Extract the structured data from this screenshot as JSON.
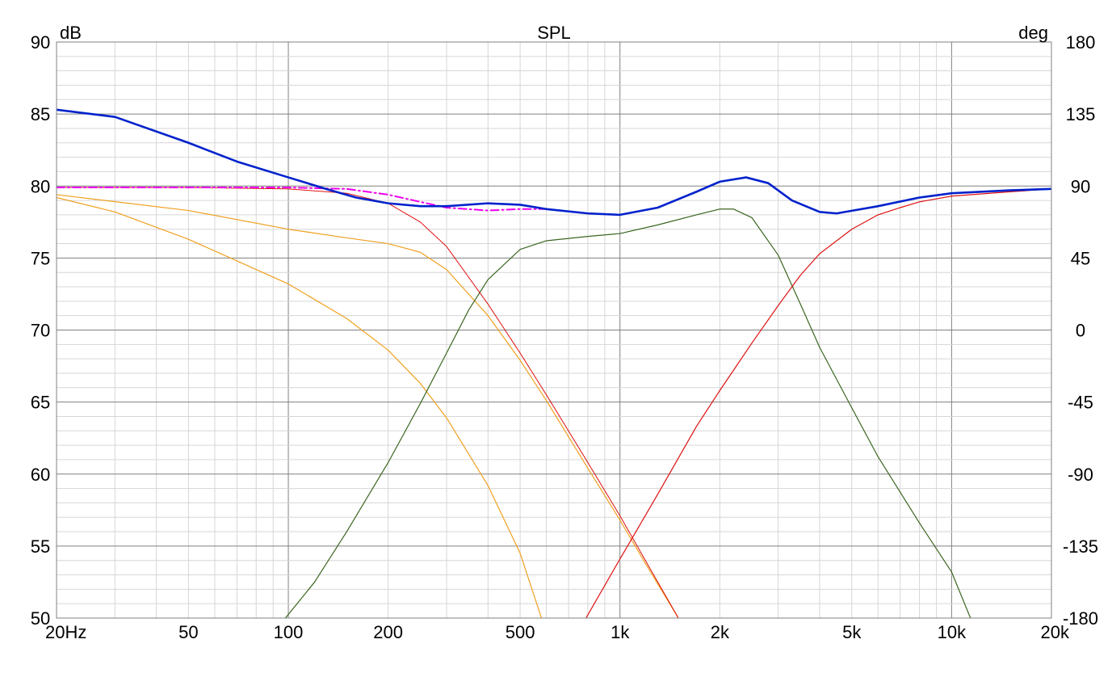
{
  "chart_data": {
    "type": "line",
    "title": "SPL",
    "ylabel_left": "dB",
    "ylabel_right": "deg",
    "x_scale": "log",
    "xlim": [
      20,
      20000
    ],
    "ylim": [
      50,
      90
    ],
    "ylim_right": [
      -180,
      180
    ],
    "grid": true,
    "x_ticks": [
      {
        "v": 20,
        "label": "20Hz"
      },
      {
        "v": 50,
        "label": "50"
      },
      {
        "v": 100,
        "label": "100"
      },
      {
        "v": 200,
        "label": "200"
      },
      {
        "v": 500,
        "label": "500"
      },
      {
        "v": 1000,
        "label": "1k"
      },
      {
        "v": 2000,
        "label": "2k"
      },
      {
        "v": 5000,
        "label": "5k"
      },
      {
        "v": 10000,
        "label": "10k"
      },
      {
        "v": 20000,
        "label": "20k"
      }
    ],
    "y_ticks": [
      {
        "v": 90,
        "label": "90"
      },
      {
        "v": 85,
        "label": "85"
      },
      {
        "v": 80,
        "label": "80"
      },
      {
        "v": 75,
        "label": "75"
      },
      {
        "v": 70,
        "label": "70"
      },
      {
        "v": 65,
        "label": "65"
      },
      {
        "v": 60,
        "label": "60"
      },
      {
        "v": 55,
        "label": "55"
      },
      {
        "v": 50,
        "label": "50"
      }
    ],
    "y_ticks_right": [
      {
        "v": 90,
        "label": "180"
      },
      {
        "v": 85,
        "label": "135"
      },
      {
        "v": 80,
        "label": "90"
      },
      {
        "v": 75,
        "label": "45"
      },
      {
        "v": 70,
        "label": "0"
      },
      {
        "v": 65,
        "label": "-45"
      },
      {
        "v": 60,
        "label": "-90"
      },
      {
        "v": 55,
        "label": "-135"
      },
      {
        "v": 50,
        "label": "-180"
      }
    ],
    "series": [
      {
        "color": "#0022cc",
        "width": 2.6,
        "dash": "",
        "points": [
          [
            20,
            85.3
          ],
          [
            30,
            84.8
          ],
          [
            50,
            83.0
          ],
          [
            70,
            81.7
          ],
          [
            100,
            80.6
          ],
          [
            130,
            79.8
          ],
          [
            160,
            79.2
          ],
          [
            200,
            78.8
          ],
          [
            250,
            78.6
          ],
          [
            300,
            78.6
          ],
          [
            400,
            78.8
          ],
          [
            500,
            78.7
          ],
          [
            600,
            78.4
          ],
          [
            800,
            78.1
          ],
          [
            1000,
            78.0
          ],
          [
            1300,
            78.5
          ],
          [
            1700,
            79.6
          ],
          [
            2000,
            80.3
          ],
          [
            2400,
            80.6
          ],
          [
            2800,
            80.2
          ],
          [
            3300,
            79.0
          ],
          [
            4000,
            78.2
          ],
          [
            4500,
            78.1
          ],
          [
            6000,
            78.6
          ],
          [
            8000,
            79.2
          ],
          [
            10000,
            79.5
          ],
          [
            15000,
            79.7
          ],
          [
            20000,
            79.8
          ]
        ]
      },
      {
        "color": "#ee00ee",
        "width": 2.0,
        "dash": "10,4,2,4",
        "points": [
          [
            20,
            79.9
          ],
          [
            50,
            79.9
          ],
          [
            100,
            79.9
          ],
          [
            150,
            79.8
          ],
          [
            200,
            79.4
          ],
          [
            250,
            78.9
          ],
          [
            300,
            78.5
          ],
          [
            400,
            78.3
          ],
          [
            500,
            78.4
          ],
          [
            600,
            78.4
          ],
          [
            800,
            78.1
          ],
          [
            1000,
            78.0
          ],
          [
            1300,
            78.5
          ],
          [
            1700,
            79.6
          ],
          [
            2000,
            80.3
          ],
          [
            2400,
            80.6
          ],
          [
            2800,
            80.2
          ],
          [
            3300,
            79.0
          ],
          [
            4000,
            78.2
          ],
          [
            4500,
            78.1
          ],
          [
            6000,
            78.6
          ],
          [
            8000,
            79.2
          ],
          [
            10000,
            79.5
          ],
          [
            15000,
            79.7
          ],
          [
            20000,
            79.8
          ]
        ]
      },
      {
        "color": "#dd0000",
        "width": 1.0,
        "dash": "2,1",
        "points": [
          [
            20,
            79.9
          ],
          [
            50,
            79.9
          ],
          [
            100,
            79.8
          ],
          [
            150,
            79.5
          ],
          [
            200,
            78.8
          ],
          [
            250,
            77.5
          ],
          [
            300,
            75.8
          ],
          [
            400,
            71.8
          ],
          [
            500,
            68.4
          ],
          [
            600,
            65.5
          ],
          [
            800,
            60.8
          ],
          [
            1000,
            57.1
          ],
          [
            1200,
            53.9
          ],
          [
            1500,
            50.0
          ]
        ]
      },
      {
        "color": "#f0a020",
        "width": 1.2,
        "dash": "",
        "points": [
          [
            20,
            79.4
          ],
          [
            50,
            78.3
          ],
          [
            100,
            77.0
          ],
          [
            150,
            76.4
          ],
          [
            200,
            76.0
          ],
          [
            250,
            75.4
          ],
          [
            300,
            74.2
          ],
          [
            400,
            71.0
          ],
          [
            500,
            67.9
          ],
          [
            600,
            65.1
          ],
          [
            800,
            60.4
          ],
          [
            1000,
            56.8
          ],
          [
            1200,
            53.7
          ],
          [
            1500,
            50.0
          ]
        ]
      },
      {
        "color": "#f0a020",
        "width": 1.2,
        "dash": "",
        "points": [
          [
            20,
            79.2
          ],
          [
            30,
            78.2
          ],
          [
            50,
            76.3
          ],
          [
            70,
            74.8
          ],
          [
            100,
            73.2
          ],
          [
            150,
            70.8
          ],
          [
            200,
            68.6
          ],
          [
            250,
            66.3
          ],
          [
            300,
            63.9
          ],
          [
            400,
            59.2
          ],
          [
            500,
            54.5
          ],
          [
            580,
            50.0
          ]
        ]
      },
      {
        "color": "#3a6620",
        "width": 1.2,
        "dash": "",
        "points": [
          [
            98,
            50.0
          ],
          [
            120,
            52.5
          ],
          [
            150,
            56.0
          ],
          [
            200,
            60.8
          ],
          [
            250,
            64.9
          ],
          [
            300,
            68.4
          ],
          [
            350,
            71.4
          ],
          [
            400,
            73.5
          ],
          [
            500,
            75.6
          ],
          [
            600,
            76.2
          ],
          [
            800,
            76.5
          ],
          [
            1000,
            76.7
          ],
          [
            1300,
            77.3
          ],
          [
            1700,
            78.0
          ],
          [
            2000,
            78.4
          ],
          [
            2200,
            78.4
          ],
          [
            2500,
            77.8
          ],
          [
            3000,
            75.2
          ],
          [
            3500,
            71.8
          ],
          [
            4000,
            68.8
          ],
          [
            5000,
            64.6
          ],
          [
            6000,
            61.2
          ],
          [
            8000,
            56.6
          ],
          [
            10000,
            53.2
          ],
          [
            11400,
            50.0
          ]
        ]
      },
      {
        "color": "#dd1111",
        "width": 1.2,
        "dash": "",
        "points": [
          [
            790,
            50.0
          ],
          [
            1000,
            54.1
          ],
          [
            1300,
            58.6
          ],
          [
            1700,
            63.3
          ],
          [
            2000,
            65.8
          ],
          [
            2500,
            69.1
          ],
          [
            3000,
            71.7
          ],
          [
            3500,
            73.8
          ],
          [
            4000,
            75.3
          ],
          [
            5000,
            77.0
          ],
          [
            6000,
            78.0
          ],
          [
            7000,
            78.5
          ],
          [
            8000,
            78.9
          ],
          [
            10000,
            79.3
          ],
          [
            15000,
            79.6
          ],
          [
            20000,
            79.8
          ]
        ]
      }
    ]
  }
}
